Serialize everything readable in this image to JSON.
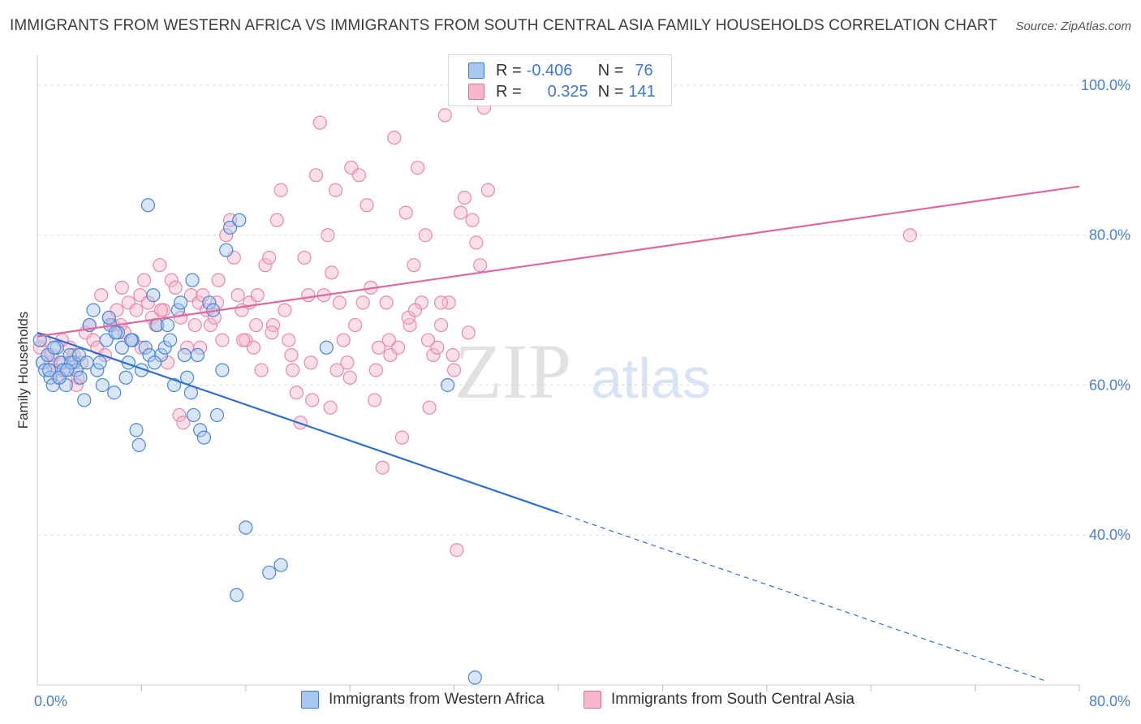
{
  "title": "IMMIGRANTS FROM WESTERN AFRICA VS IMMIGRANTS FROM SOUTH CENTRAL ASIA FAMILY HOUSEHOLDS CORRELATION CHART",
  "source": "Source: ZipAtlas.com",
  "legend": {
    "r_label": "R =",
    "n_label": "N =",
    "rows": [
      {
        "r": "-0.406",
        "n": "76",
        "color": "#a8c8f0",
        "border": "#3b78d8"
      },
      {
        "r": "0.325",
        "n": "141",
        "color": "#f7b8cc",
        "border": "#e07098"
      }
    ]
  },
  "watermark": {
    "zip": "ZIP",
    "atlas": "atlas"
  },
  "colors": {
    "blue_fill": "#a8c8f0",
    "blue_stroke": "#4a86d8",
    "blue_line": "#2e6fce",
    "pink_fill": "#f7b8cc",
    "pink_stroke": "#e888aa",
    "pink_line": "#e0689a"
  },
  "chart_data": {
    "type": "scatter",
    "title": "IMMIGRANTS FROM WESTERN AFRICA VS IMMIGRANTS FROM SOUTH CENTRAL ASIA FAMILY HOUSEHOLDS CORRELATION CHART",
    "xlabel": "",
    "ylabel": "Family Households",
    "xlim": [
      0,
      80
    ],
    "ylim": [
      20,
      104
    ],
    "x_tick_labels": [
      "0.0%",
      "80.0%"
    ],
    "y_ticks": [
      40,
      60,
      80,
      100
    ],
    "y_tick_labels": [
      "40.0%",
      "60.0%",
      "80.0%",
      "100.0%"
    ],
    "series": [
      {
        "name": "Immigrants from Western Africa",
        "r": -0.406,
        "n": 76,
        "trend": {
          "x0": 0,
          "y0": 67.0,
          "x1": 40,
          "y1": 43.0,
          "dash_to_x": 77.5,
          "dash_to_y": 20.5
        },
        "points": [
          [
            0.2,
            66
          ],
          [
            0.4,
            63
          ],
          [
            0.6,
            62
          ],
          [
            0.8,
            64
          ],
          [
            1.0,
            61
          ],
          [
            1.2,
            60
          ],
          [
            1.5,
            65
          ],
          [
            1.8,
            63
          ],
          [
            2.0,
            62
          ],
          [
            2.2,
            60
          ],
          [
            2.5,
            64
          ],
          [
            2.8,
            63
          ],
          [
            3.0,
            62
          ],
          [
            3.3,
            61
          ],
          [
            3.6,
            58
          ],
          [
            4.0,
            68
          ],
          [
            4.3,
            70
          ],
          [
            4.6,
            62
          ],
          [
            5.0,
            60
          ],
          [
            5.3,
            66
          ],
          [
            5.6,
            68
          ],
          [
            5.9,
            59
          ],
          [
            6.2,
            67
          ],
          [
            6.5,
            65
          ],
          [
            6.8,
            61
          ],
          [
            7.0,
            63
          ],
          [
            7.3,
            66
          ],
          [
            7.6,
            54
          ],
          [
            7.8,
            52
          ],
          [
            8.0,
            62
          ],
          [
            8.3,
            65
          ],
          [
            8.6,
            64
          ],
          [
            8.9,
            72
          ],
          [
            9.2,
            68
          ],
          [
            9.5,
            64
          ],
          [
            9.8,
            65
          ],
          [
            10.2,
            66
          ],
          [
            10.5,
            60
          ],
          [
            10.8,
            70
          ],
          [
            11.0,
            71
          ],
          [
            11.3,
            64
          ],
          [
            11.5,
            61
          ],
          [
            11.8,
            59
          ],
          [
            12.0,
            56
          ],
          [
            12.3,
            64
          ],
          [
            12.5,
            54
          ],
          [
            12.8,
            53
          ],
          [
            13.2,
            71
          ],
          [
            13.5,
            70
          ],
          [
            13.8,
            56
          ],
          [
            14.2,
            62
          ],
          [
            14.5,
            78
          ],
          [
            8.5,
            84
          ],
          [
            14.8,
            81
          ],
          [
            15.5,
            82
          ],
          [
            16.0,
            41
          ],
          [
            17.8,
            35
          ],
          [
            18.7,
            36
          ],
          [
            15.3,
            32
          ],
          [
            22.2,
            65
          ],
          [
            31.5,
            60
          ],
          [
            33.6,
            21
          ],
          [
            1.3,
            65
          ],
          [
            2.6,
            63
          ],
          [
            3.2,
            64
          ],
          [
            4.8,
            63
          ],
          [
            0.9,
            62
          ],
          [
            1.7,
            61
          ],
          [
            6.0,
            67
          ],
          [
            7.2,
            66
          ],
          [
            9.0,
            63
          ],
          [
            10.0,
            68
          ],
          [
            5.5,
            69
          ],
          [
            3.8,
            63
          ],
          [
            11.9,
            74
          ],
          [
            2.3,
            62
          ]
        ]
      },
      {
        "name": "Immigrants from South Central Asia",
        "r": 0.325,
        "n": 141,
        "trend": {
          "x0": 0,
          "y0": 66.5,
          "x1": 80,
          "y1": 86.5
        },
        "points": [
          [
            0.2,
            65
          ],
          [
            0.5,
            66
          ],
          [
            0.8,
            64
          ],
          [
            1.0,
            63
          ],
          [
            1.3,
            62
          ],
          [
            1.6,
            61
          ],
          [
            1.9,
            66
          ],
          [
            2.2,
            62
          ],
          [
            2.5,
            65
          ],
          [
            2.8,
            64
          ],
          [
            3.1,
            61
          ],
          [
            3.4,
            63
          ],
          [
            3.7,
            67
          ],
          [
            4.0,
            68
          ],
          [
            4.3,
            66
          ],
          [
            4.6,
            65
          ],
          [
            4.9,
            72
          ],
          [
            5.2,
            64
          ],
          [
            5.5,
            69
          ],
          [
            5.8,
            68
          ],
          [
            6.1,
            70
          ],
          [
            6.4,
            68
          ],
          [
            6.7,
            67
          ],
          [
            7.0,
            71
          ],
          [
            7.3,
            66
          ],
          [
            7.6,
            70
          ],
          [
            7.9,
            72
          ],
          [
            8.2,
            74
          ],
          [
            8.5,
            71
          ],
          [
            8.8,
            69
          ],
          [
            9.1,
            68
          ],
          [
            9.4,
            76
          ],
          [
            9.7,
            70
          ],
          [
            10.0,
            63
          ],
          [
            10.3,
            74
          ],
          [
            10.6,
            73
          ],
          [
            10.9,
            56
          ],
          [
            11.2,
            55
          ],
          [
            11.5,
            65
          ],
          [
            11.8,
            72
          ],
          [
            12.1,
            68
          ],
          [
            12.4,
            71
          ],
          [
            12.7,
            72
          ],
          [
            13.0,
            70
          ],
          [
            13.3,
            68
          ],
          [
            13.6,
            69
          ],
          [
            13.9,
            74
          ],
          [
            14.2,
            66
          ],
          [
            14.5,
            80
          ],
          [
            14.8,
            82
          ],
          [
            15.1,
            77
          ],
          [
            15.4,
            72
          ],
          [
            15.7,
            70
          ],
          [
            16.0,
            66
          ],
          [
            16.3,
            71
          ],
          [
            16.6,
            65
          ],
          [
            16.9,
            72
          ],
          [
            17.2,
            62
          ],
          [
            17.5,
            76
          ],
          [
            17.8,
            77
          ],
          [
            18.1,
            68
          ],
          [
            18.4,
            82
          ],
          [
            18.7,
            86
          ],
          [
            19.0,
            70
          ],
          [
            19.3,
            66
          ],
          [
            19.6,
            62
          ],
          [
            19.9,
            59
          ],
          [
            20.2,
            55
          ],
          [
            20.5,
            77
          ],
          [
            20.8,
            72
          ],
          [
            21.1,
            58
          ],
          [
            21.4,
            88
          ],
          [
            21.7,
            95
          ],
          [
            22.0,
            72
          ],
          [
            22.3,
            80
          ],
          [
            22.6,
            75
          ],
          [
            22.9,
            86
          ],
          [
            23.2,
            71
          ],
          [
            23.5,
            66
          ],
          [
            23.8,
            63
          ],
          [
            24.1,
            89
          ],
          [
            24.4,
            68
          ],
          [
            24.7,
            88
          ],
          [
            25.0,
            71
          ],
          [
            25.3,
            84
          ],
          [
            25.6,
            73
          ],
          [
            25.9,
            58
          ],
          [
            26.2,
            65
          ],
          [
            26.5,
            49
          ],
          [
            26.8,
            71
          ],
          [
            27.1,
            64
          ],
          [
            27.4,
            93
          ],
          [
            27.7,
            65
          ],
          [
            28.0,
            53
          ],
          [
            28.3,
            83
          ],
          [
            28.6,
            68
          ],
          [
            28.9,
            76
          ],
          [
            29.2,
            89
          ],
          [
            29.5,
            71
          ],
          [
            29.8,
            80
          ],
          [
            30.1,
            57
          ],
          [
            30.4,
            64
          ],
          [
            30.7,
            65
          ],
          [
            31.0,
            68
          ],
          [
            31.3,
            96
          ],
          [
            31.6,
            71
          ],
          [
            31.9,
            64
          ],
          [
            32.2,
            38
          ],
          [
            32.5,
            83
          ],
          [
            32.8,
            85
          ],
          [
            33.1,
            67
          ],
          [
            33.4,
            82
          ],
          [
            33.7,
            79
          ],
          [
            34.0,
            76
          ],
          [
            34.3,
            97
          ],
          [
            34.6,
            86
          ],
          [
            1.1,
            64
          ],
          [
            2.0,
            63
          ],
          [
            3.0,
            60
          ],
          [
            6.5,
            73
          ],
          [
            8.0,
            65
          ],
          [
            9.5,
            70
          ],
          [
            11.0,
            69
          ],
          [
            12.5,
            65
          ],
          [
            13.8,
            71
          ],
          [
            15.8,
            66
          ],
          [
            16.8,
            68
          ],
          [
            18.0,
            67
          ],
          [
            19.5,
            64
          ],
          [
            21.0,
            63
          ],
          [
            22.5,
            57
          ],
          [
            23.0,
            62
          ],
          [
            24.0,
            61
          ],
          [
            26.0,
            62
          ],
          [
            27.0,
            66
          ],
          [
            28.5,
            69
          ],
          [
            29.0,
            70
          ],
          [
            30.0,
            66
          ],
          [
            31.0,
            71
          ],
          [
            32.0,
            62
          ],
          [
            67.0,
            80
          ]
        ]
      }
    ]
  },
  "bottom_legend": [
    "Immigrants from Western Africa",
    "Immigrants from South Central Asia"
  ]
}
